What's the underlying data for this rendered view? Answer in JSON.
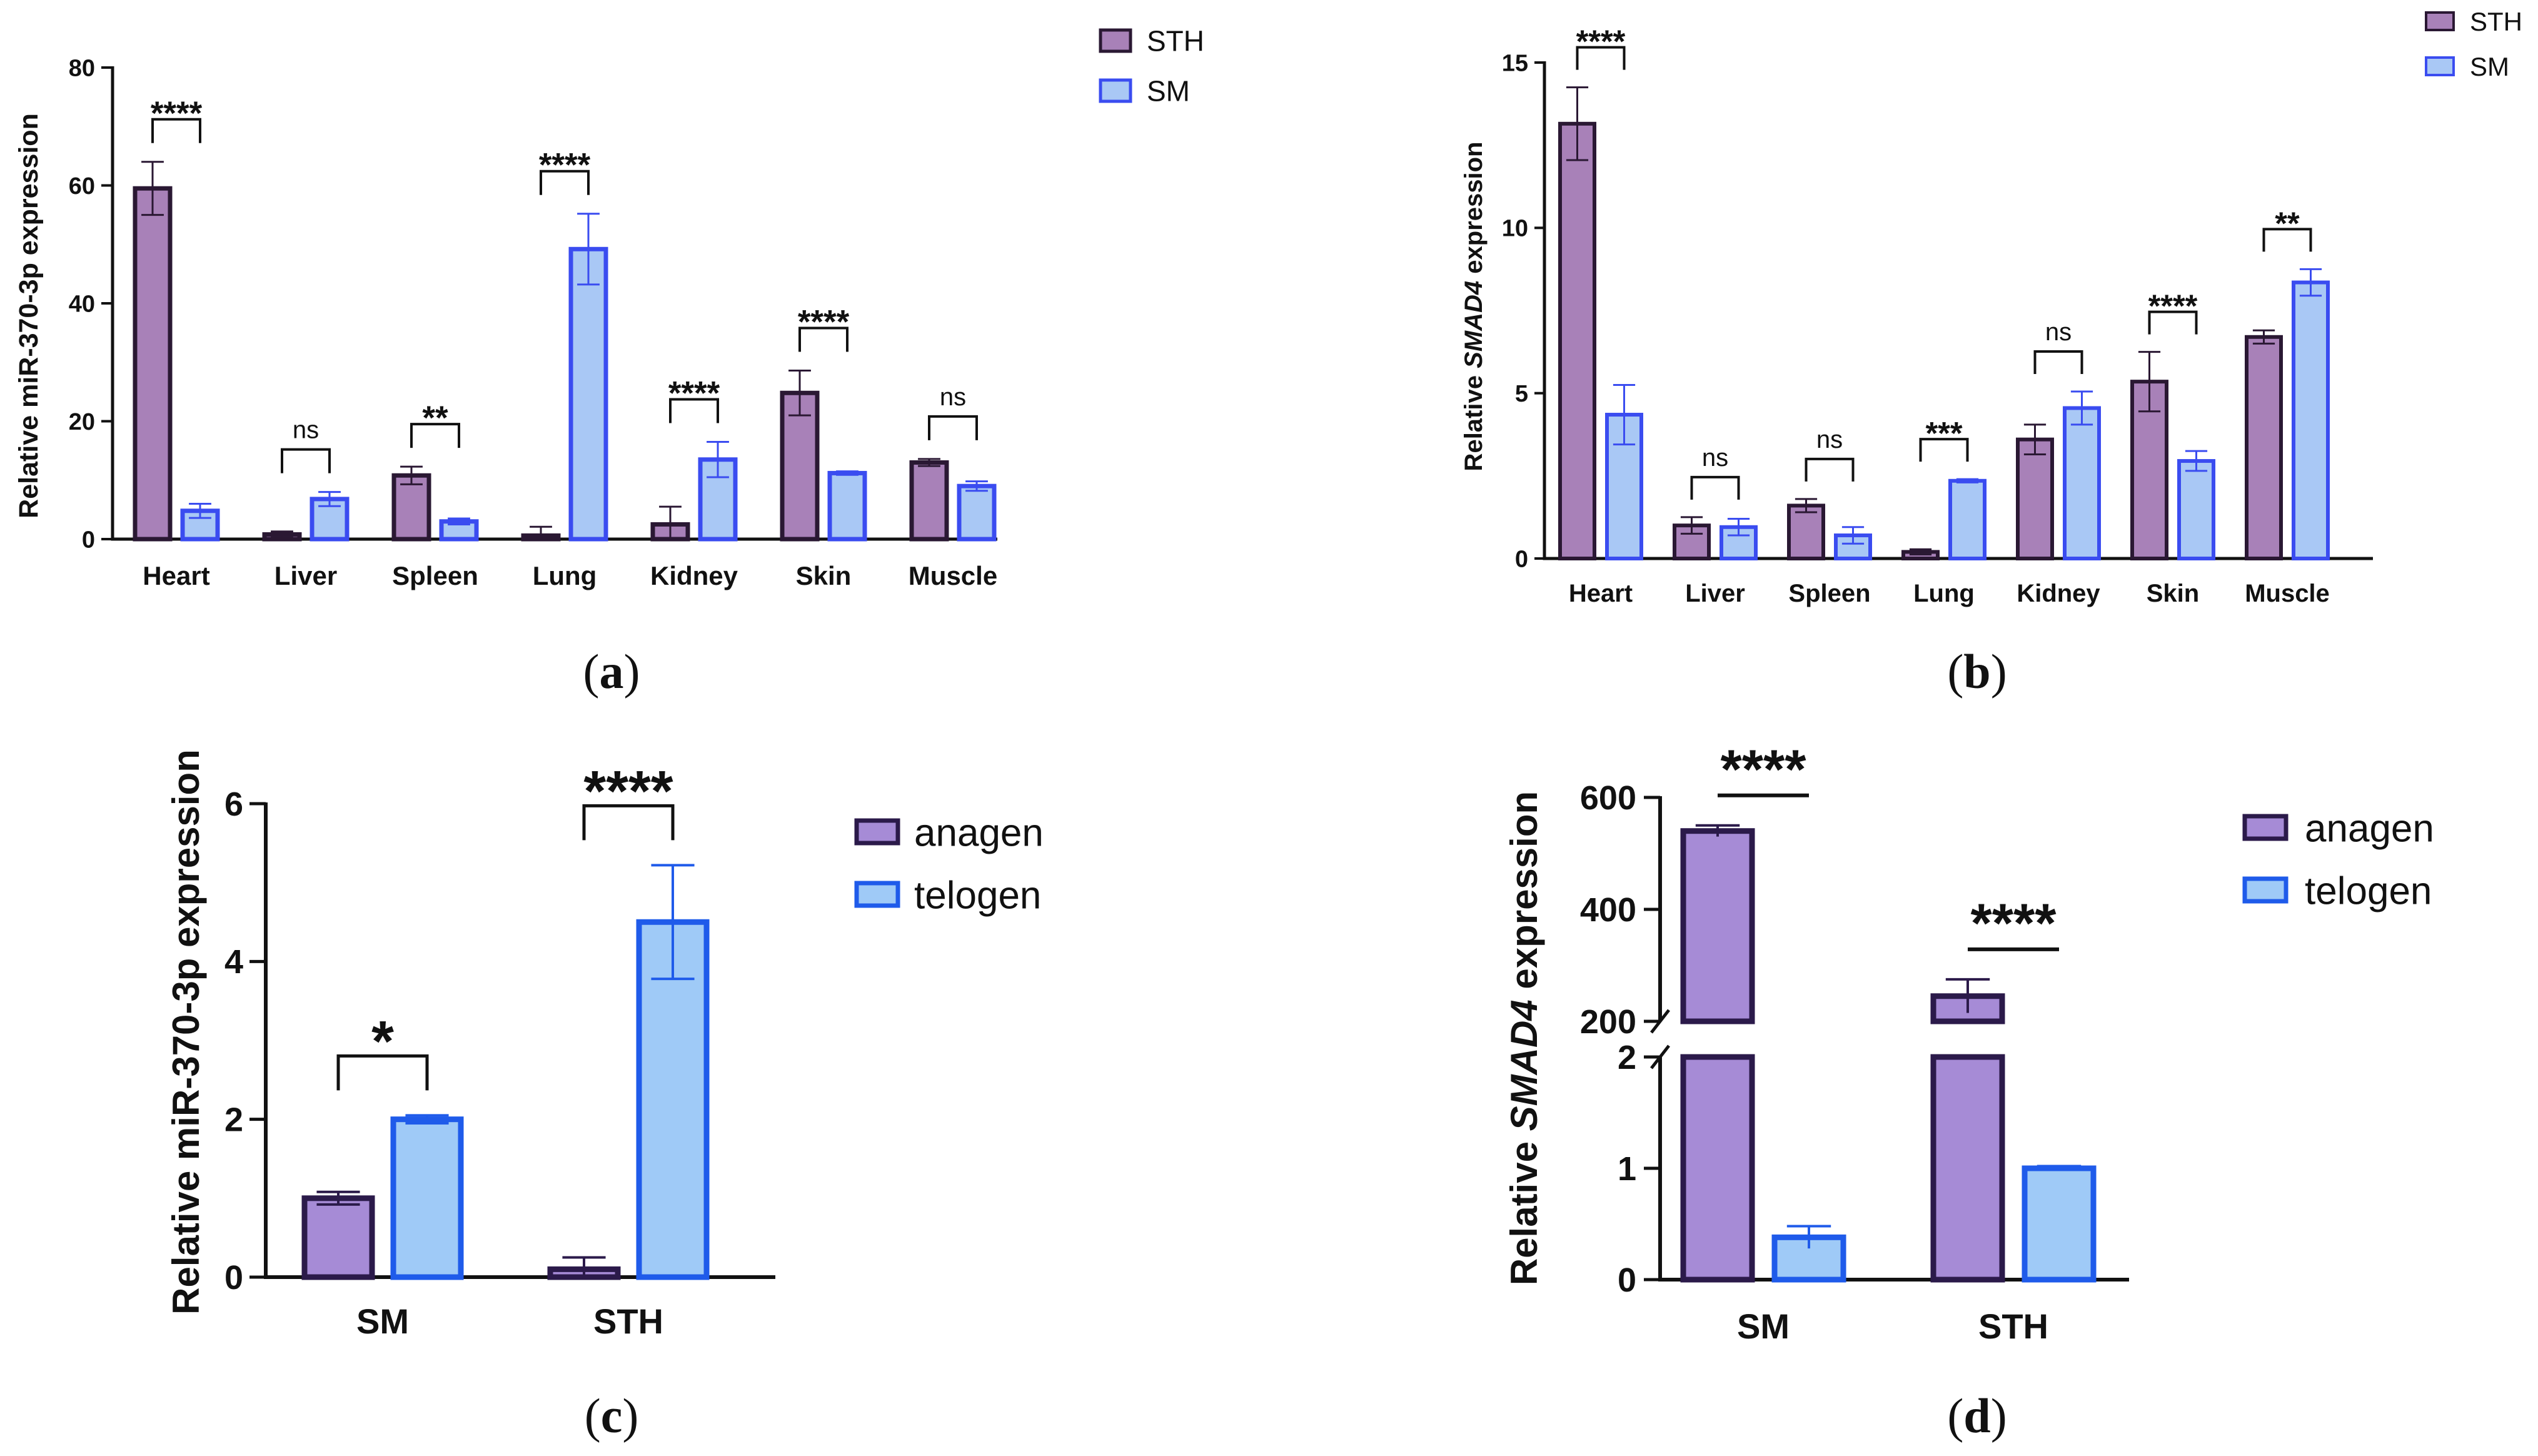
{
  "colors": {
    "sth_fill": "#a881b8",
    "sth_stroke": "#2a1833",
    "sm_fill": "#a9c8f5",
    "sm_stroke": "#3a4cf0",
    "anagen_fill": "#a68bd6",
    "anagen_stroke": "#2b1a4a",
    "telogen_fill": "#9fcaf7",
    "telogen_stroke": "#1f5bea",
    "axis": "#111111"
  },
  "chart_data": [
    {
      "id": "a",
      "panel_label": "a",
      "type": "bar",
      "ylabel": "Relative miR-370-3p expression",
      "ylim": [
        0,
        80
      ],
      "yticks": [
        0,
        20,
        40,
        60,
        80
      ],
      "categories": [
        "Heart",
        "Liver",
        "Spleen",
        "Lung",
        "Kidney",
        "Skin",
        "Muscle"
      ],
      "series": [
        {
          "name": "STH",
          "color_key": "sth",
          "values": [
            59.5,
            0.8,
            10.8,
            0.6,
            2.5,
            24.8,
            13.0
          ],
          "errors": [
            4.5,
            0.5,
            1.5,
            1.5,
            3.0,
            3.8,
            0.6
          ]
        },
        {
          "name": "SM",
          "color_key": "sm",
          "values": [
            4.8,
            6.8,
            3.0,
            49.2,
            13.5,
            11.2,
            9.0
          ],
          "errors": [
            1.2,
            1.2,
            0.5,
            6.0,
            3.0,
            0.3,
            0.8
          ]
        }
      ],
      "significance": [
        "****",
        "ns",
        "**",
        "****",
        "****",
        "****",
        "ns"
      ],
      "legend": "top-right"
    },
    {
      "id": "b",
      "panel_label": "b",
      "type": "bar",
      "ylabel_prefix": "Relative ",
      "ylabel_gene": "SMAD4",
      "ylabel_suffix": " expression",
      "ylim": [
        0,
        15
      ],
      "yticks": [
        0,
        5,
        10,
        15
      ],
      "categories": [
        "Heart",
        "Liver",
        "Spleen",
        "Lung",
        "Kidney",
        "Skin",
        "Muscle"
      ],
      "series": [
        {
          "name": "STH",
          "color_key": "sth",
          "values": [
            13.15,
            1.0,
            1.6,
            0.2,
            3.6,
            5.35,
            6.7
          ],
          "errors": [
            1.1,
            0.25,
            0.2,
            0.08,
            0.45,
            0.9,
            0.2
          ]
        },
        {
          "name": "SM",
          "color_key": "sm",
          "values": [
            4.35,
            0.95,
            0.7,
            2.35,
            4.55,
            2.95,
            8.35
          ],
          "errors": [
            0.9,
            0.25,
            0.25,
            0.05,
            0.5,
            0.3,
            0.4
          ]
        }
      ],
      "significance": [
        "****",
        "ns",
        "ns",
        "***",
        "ns",
        "****",
        "**"
      ],
      "legend": "top-right"
    },
    {
      "id": "c",
      "panel_label": "c",
      "type": "bar",
      "ylabel": "Relative miR-370-3p expression",
      "ylim": [
        0,
        6
      ],
      "yticks": [
        0,
        2,
        4,
        6
      ],
      "categories": [
        "SM",
        "STH"
      ],
      "series": [
        {
          "name": "anagen",
          "color_key": "anagen",
          "values": [
            1.0,
            0.1
          ],
          "errors": [
            0.08,
            0.15
          ]
        },
        {
          "name": "telogen",
          "color_key": "telogen",
          "values": [
            2.0,
            4.5
          ],
          "errors": [
            0.05,
            0.72
          ]
        }
      ],
      "significance": [
        "*",
        "****"
      ],
      "legend": "right"
    },
    {
      "id": "d",
      "panel_label": "d",
      "type": "bar",
      "ylabel_prefix": "Relative ",
      "ylabel_gene": "SMAD4",
      "ylabel_suffix": " expression",
      "broken_axis": true,
      "lower_ylim": [
        0,
        2
      ],
      "lower_yticks": [
        0,
        1,
        2
      ],
      "upper_ylim": [
        200,
        600
      ],
      "upper_yticks": [
        200,
        400,
        600
      ],
      "categories": [
        "SM",
        "STH"
      ],
      "series": [
        {
          "name": "anagen",
          "color_key": "anagen",
          "values": [
            540,
            245
          ],
          "errors": [
            10,
            30
          ]
        },
        {
          "name": "telogen",
          "color_key": "telogen",
          "values": [
            0.38,
            1.0
          ],
          "errors": [
            0.1,
            0.02
          ]
        }
      ],
      "significance": [
        "****",
        "****"
      ],
      "legend": "right"
    }
  ]
}
